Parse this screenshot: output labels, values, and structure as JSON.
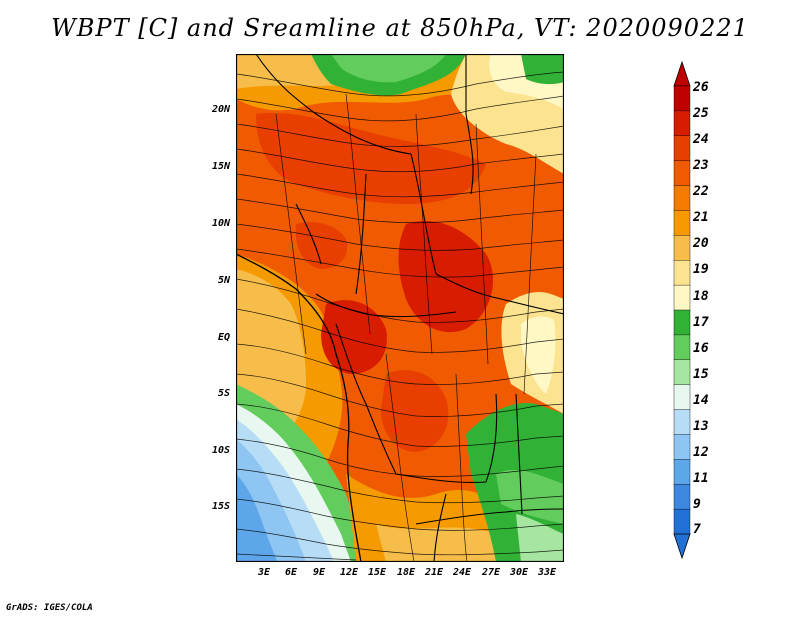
{
  "title": "WBPT [C] and Sreamline at 850hPa, VT: 2020090221",
  "credit": "GrADS: IGES/COLA",
  "lat_labels": [
    "20N",
    "15N",
    "10N",
    "5N",
    "EQ",
    "5S",
    "10S",
    "15S"
  ],
  "lon_labels": [
    "3E",
    "6E",
    "9E",
    "12E",
    "15E",
    "18E",
    "21E",
    "24E",
    "27E",
    "30E",
    "33E"
  ],
  "colorbar": {
    "labels": [
      "26",
      "25",
      "24",
      "23",
      "22",
      "21",
      "20",
      "19",
      "18",
      "17",
      "16",
      "15",
      "14",
      "13",
      "12",
      "11",
      "9",
      "7"
    ],
    "colors": [
      "#c00000",
      "#d81c00",
      "#e83e00",
      "#f05a00",
      "#f47a00",
      "#f59a00",
      "#f7bd4a",
      "#fbe38f",
      "#fff7c4",
      "#31b236",
      "#62cc5c",
      "#a7e6a0",
      "#e8f8f0",
      "#b7dcf6",
      "#8ec5f2",
      "#5ea6ea",
      "#3f88e0",
      "#2170d6"
    ]
  },
  "map_data": {
    "variable": "Wet-bulb potential temperature (C) with streamlines",
    "level": "850hPa",
    "valid_time": "2020090221"
  }
}
